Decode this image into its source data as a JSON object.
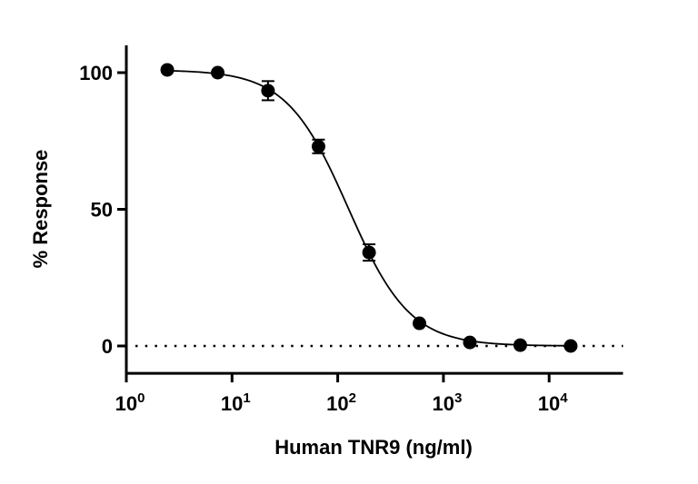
{
  "chart_data": {
    "type": "scatter",
    "title": "",
    "xlabel": "Human TNR9 (ng/ml)",
    "ylabel": "% Response",
    "x_scale": "log",
    "xlim": [
      1,
      50000
    ],
    "ylim": [
      -10,
      110
    ],
    "x_ticks": [
      {
        "value": 1,
        "base": "10",
        "exp": "0"
      },
      {
        "value": 10,
        "base": "10",
        "exp": "1"
      },
      {
        "value": 100,
        "base": "10",
        "exp": "2"
      },
      {
        "value": 1000,
        "base": "10",
        "exp": "3"
      },
      {
        "value": 10000,
        "base": "10",
        "exp": "4"
      }
    ],
    "y_ticks": [
      {
        "value": 0,
        "label": "0"
      },
      {
        "value": 50,
        "label": "50"
      },
      {
        "value": 100,
        "label": "100"
      }
    ],
    "grid": false,
    "reference_line": {
      "y": 0,
      "style": "dotted"
    },
    "points": [
      {
        "x": 2.44,
        "y": 101,
        "err": 0
      },
      {
        "x": 7.32,
        "y": 100,
        "err": 0
      },
      {
        "x": 21.9,
        "y": 93.4,
        "err": 3.5
      },
      {
        "x": 65.8,
        "y": 73,
        "err": 2.5
      },
      {
        "x": 198,
        "y": 34.2,
        "err": 3
      },
      {
        "x": 593,
        "y": 8.3,
        "err": 0
      },
      {
        "x": 1778,
        "y": 1.3,
        "err": 0
      },
      {
        "x": 5333,
        "y": 0.3,
        "err": 0
      },
      {
        "x": 16000,
        "y": 0,
        "err": 0
      }
    ],
    "fit": {
      "model": "4PL",
      "top": 101,
      "bottom": 0,
      "ic50": 125.6,
      "hill": 1.49
    },
    "colors": {
      "points": "#000000",
      "line": "#000000"
    }
  }
}
